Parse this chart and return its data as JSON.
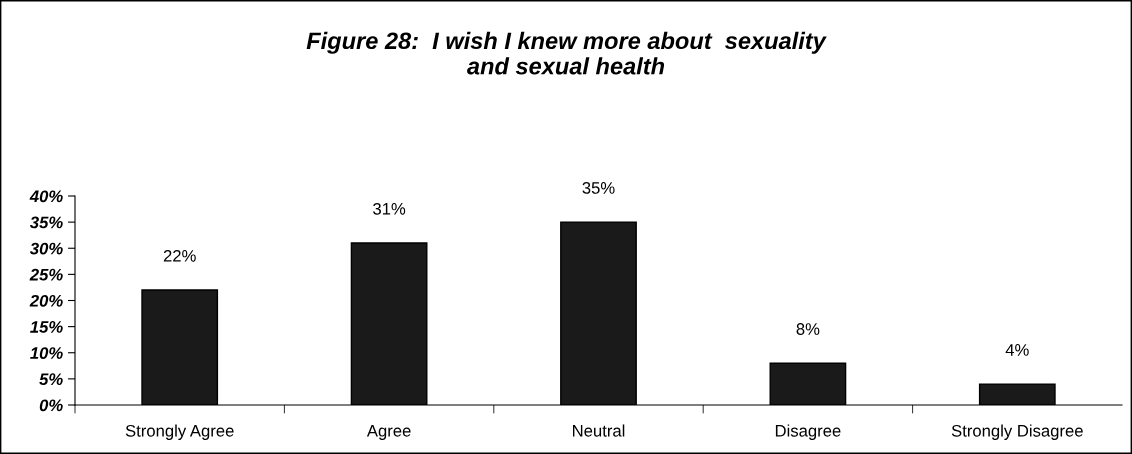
{
  "chart_data": {
    "type": "bar",
    "title": "Figure 28:  I wish I knew more about  sexuality\nand sexual health",
    "categories": [
      "Strongly Agree",
      "Agree",
      "Neutral",
      "Disagree",
      "Strongly Disagree"
    ],
    "values": [
      22,
      31,
      35,
      8,
      4
    ],
    "value_labels": [
      "22%",
      "31%",
      "35%",
      "8%",
      "4%"
    ],
    "color": "#1a1a1a",
    "ylim": [
      0,
      40
    ],
    "yticks": [
      {
        "value": 0,
        "label": "0%"
      },
      {
        "value": 5,
        "label": "5%"
      },
      {
        "value": 10,
        "label": "10%"
      },
      {
        "value": 15,
        "label": "15%"
      },
      {
        "value": 20,
        "label": "20%"
      },
      {
        "value": 25,
        "label": "25%"
      },
      {
        "value": 30,
        "label": "30%"
      },
      {
        "value": 35,
        "label": "35%"
      },
      {
        "value": 40,
        "label": "40%"
      }
    ],
    "grid": false,
    "legend": false
  }
}
